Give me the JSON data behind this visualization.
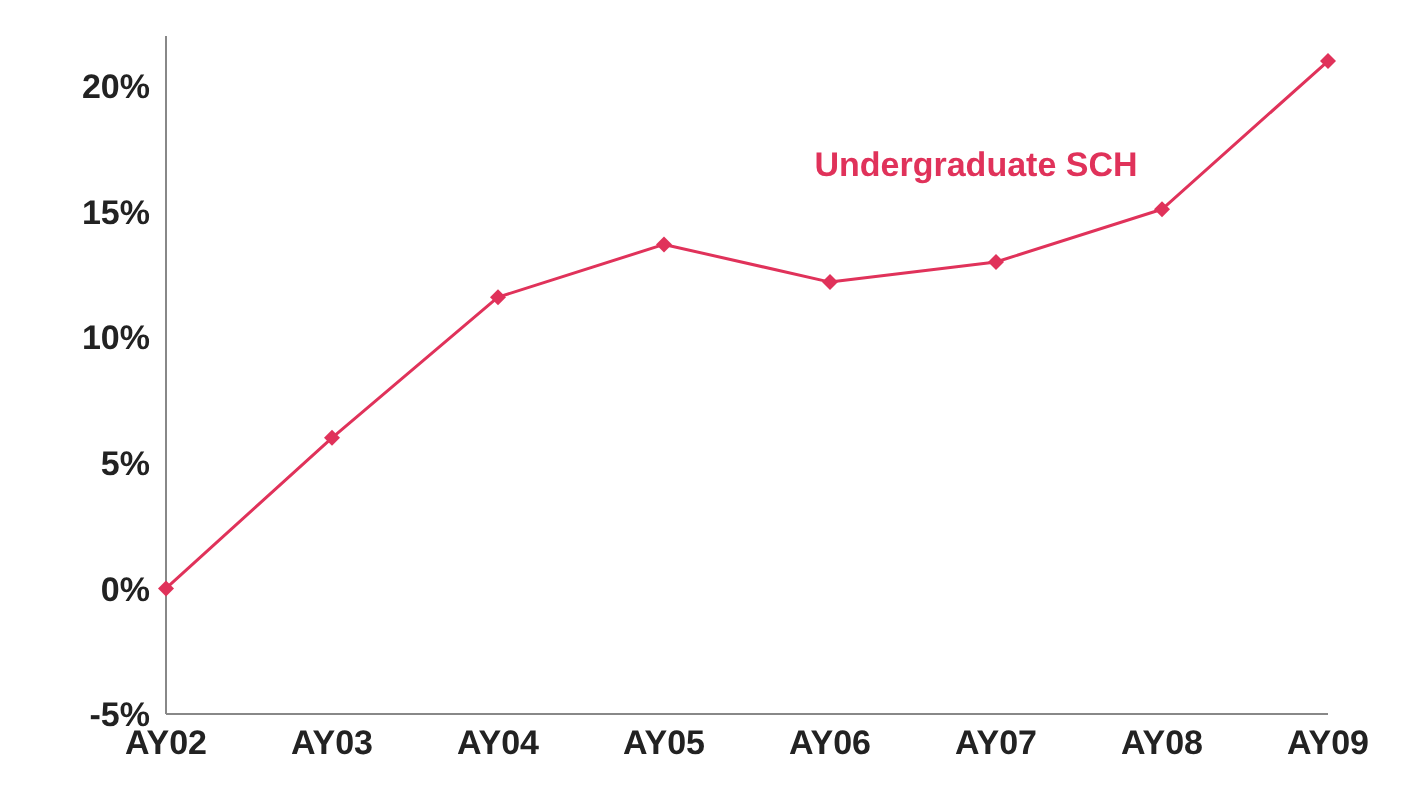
{
  "chart_data": {
    "type": "line",
    "categories": [
      "AY02",
      "AY03",
      "AY04",
      "AY05",
      "AY06",
      "AY07",
      "AY08",
      "AY09"
    ],
    "series": [
      {
        "name": "Undergraduate SCH",
        "color": "#e0325a",
        "values": [
          0,
          6.0,
          11.6,
          13.7,
          12.2,
          13.0,
          15.1,
          21.0
        ]
      }
    ],
    "ylim": [
      -5,
      22
    ],
    "yticks": [
      {
        "value": -5,
        "label": "-5%"
      },
      {
        "value": 0,
        "label": "0%"
      },
      {
        "value": 5,
        "label": "5%"
      },
      {
        "value": 10,
        "label": "10%"
      },
      {
        "value": 15,
        "label": "15%"
      },
      {
        "value": 20,
        "label": "20%"
      }
    ],
    "grid": false,
    "legend": false,
    "marker": "diamond",
    "line_style": "solid"
  }
}
